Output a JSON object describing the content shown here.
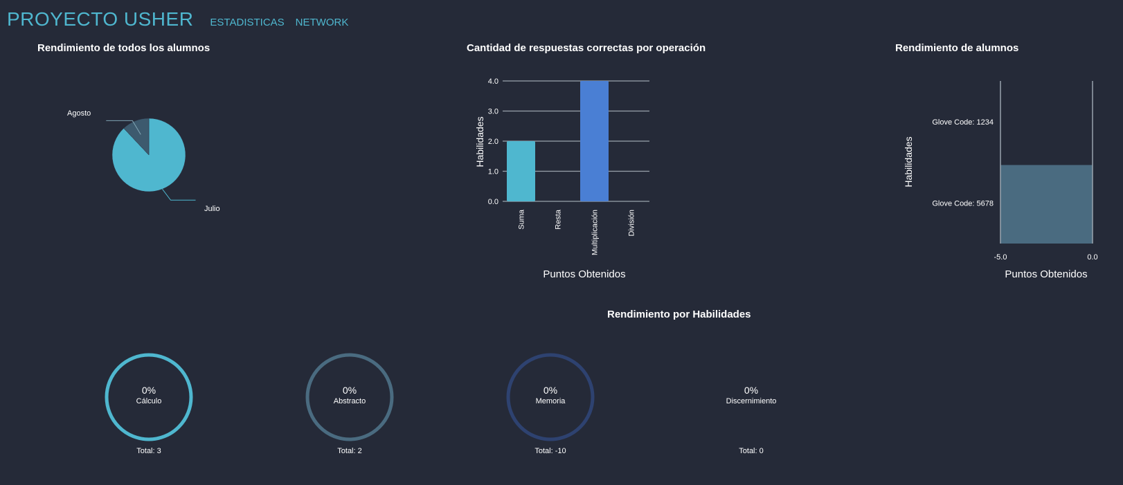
{
  "header": {
    "brand": "PROYECTO USHER",
    "nav": [
      {
        "label": "ESTADISTICAS"
      },
      {
        "label": "NETWORK"
      }
    ]
  },
  "colors": {
    "background": "#252a38",
    "accent": "#4fb7cf",
    "slate": "#4a6b80",
    "blue": "#4a7fd4",
    "navy": "#2e4270"
  },
  "chart_data": [
    {
      "type": "pie",
      "title": "Rendimiento de todos los alumnos",
      "slices": [
        {
          "label": "Julio",
          "value": 88,
          "color": "#4fb7cf"
        },
        {
          "label": "Agosto",
          "value": 12,
          "color": "#3d5a6e"
        }
      ]
    },
    {
      "type": "bar",
      "title": "Cantidad de respuestas correctas por operación",
      "xlabel": "Puntos Obtenidos",
      "ylabel": "Habilidades",
      "categories": [
        "Suma",
        "Resta",
        "Multiplicación",
        "División"
      ],
      "values": [
        2,
        0,
        4,
        0
      ],
      "colors": [
        "#4fb7cf",
        "#4fb7cf",
        "#4a7fd4",
        "#4a7fd4"
      ],
      "ylim": [
        0,
        4
      ],
      "yticks": [
        "0.0",
        "1.0",
        "2.0",
        "3.0",
        "4.0"
      ],
      "grid": true
    },
    {
      "type": "bar",
      "orientation": "horizontal",
      "title": "Rendimiento de alumnos",
      "xlabel": "Puntos Obtenidos",
      "ylabel": "Habilidades",
      "categories": [
        "Glove Code: 1234",
        "Glove Code: 5678"
      ],
      "values": [
        0,
        -5
      ],
      "xlim": [
        -5,
        0
      ],
      "xticks": [
        "-5.0",
        "0.0"
      ],
      "color": "#4a6b80"
    }
  ],
  "skills": {
    "title": "Rendimiento por Habilidades",
    "items": [
      {
        "percent": "0%",
        "name": "Cálculo",
        "total": "Total: 3",
        "color": "#4fb7cf",
        "ring": true
      },
      {
        "percent": "0%",
        "name": "Abstracto",
        "total": "Total: 2",
        "color": "#4a6b80",
        "ring": true
      },
      {
        "percent": "0%",
        "name": "Memoria",
        "total": "Total: -10",
        "color": "#2e4270",
        "ring": true
      },
      {
        "percent": "0%",
        "name": "Discernimiento",
        "total": "Total: 0",
        "color": "#252a38",
        "ring": false
      }
    ]
  }
}
